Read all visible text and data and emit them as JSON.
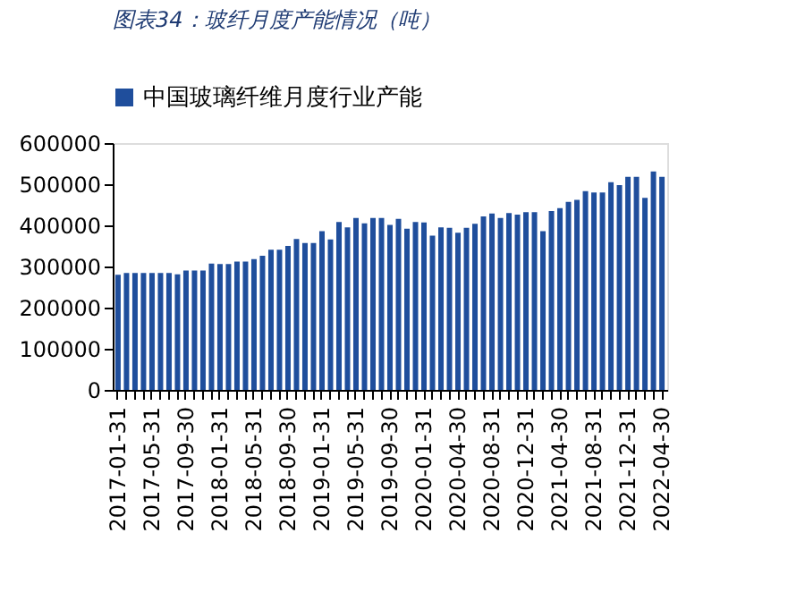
{
  "chart_data": {
    "type": "bar",
    "title": "图表34：玻纤月度产能情况（吨）",
    "categories": [
      "2017-01-31",
      null,
      null,
      null,
      "2017-05-31",
      null,
      null,
      null,
      "2017-09-30",
      null,
      null,
      null,
      "2018-01-31",
      null,
      null,
      null,
      "2018-05-31",
      null,
      null,
      null,
      "2018-09-30",
      null,
      null,
      null,
      "2019-01-31",
      null,
      null,
      null,
      "2019-05-31",
      null,
      null,
      null,
      "2019-09-30",
      null,
      null,
      null,
      "2020-01-31",
      null,
      null,
      null,
      "2020-04-30",
      null,
      null,
      null,
      "2020-08-31",
      null,
      null,
      null,
      "2020-12-31",
      null,
      null,
      null,
      "2021-04-30",
      null,
      null,
      null,
      "2021-08-31",
      null,
      null,
      null,
      "2021-12-31",
      null,
      null,
      null,
      "2022-04-30"
    ],
    "series": [
      {
        "name": "中国玻璃纤维月度行业产能",
        "color": "#1f4e9c",
        "values": [
          280000,
          284000,
          284000,
          284000,
          284000,
          284000,
          284000,
          281000,
          290000,
          290000,
          290000,
          307000,
          306000,
          306000,
          312000,
          312000,
          318000,
          326000,
          341000,
          341000,
          350000,
          367000,
          357000,
          357000,
          386000,
          366000,
          408000,
          395000,
          418000,
          405000,
          418000,
          418000,
          401000,
          416000,
          392000,
          408000,
          407000,
          375000,
          395000,
          394000,
          382000,
          394000,
          404000,
          422000,
          429000,
          418000,
          430000,
          426000,
          432000,
          432000,
          386000,
          435000,
          442000,
          457000,
          462000,
          483000,
          480000,
          480000,
          505000,
          498000,
          518000,
          518000,
          467000,
          531000,
          518000
        ]
      }
    ],
    "ylim": [
      0,
      600000
    ],
    "yticks": [
      0,
      100000,
      200000,
      300000,
      400000,
      500000,
      600000
    ],
    "grid": false,
    "legend": "top"
  }
}
